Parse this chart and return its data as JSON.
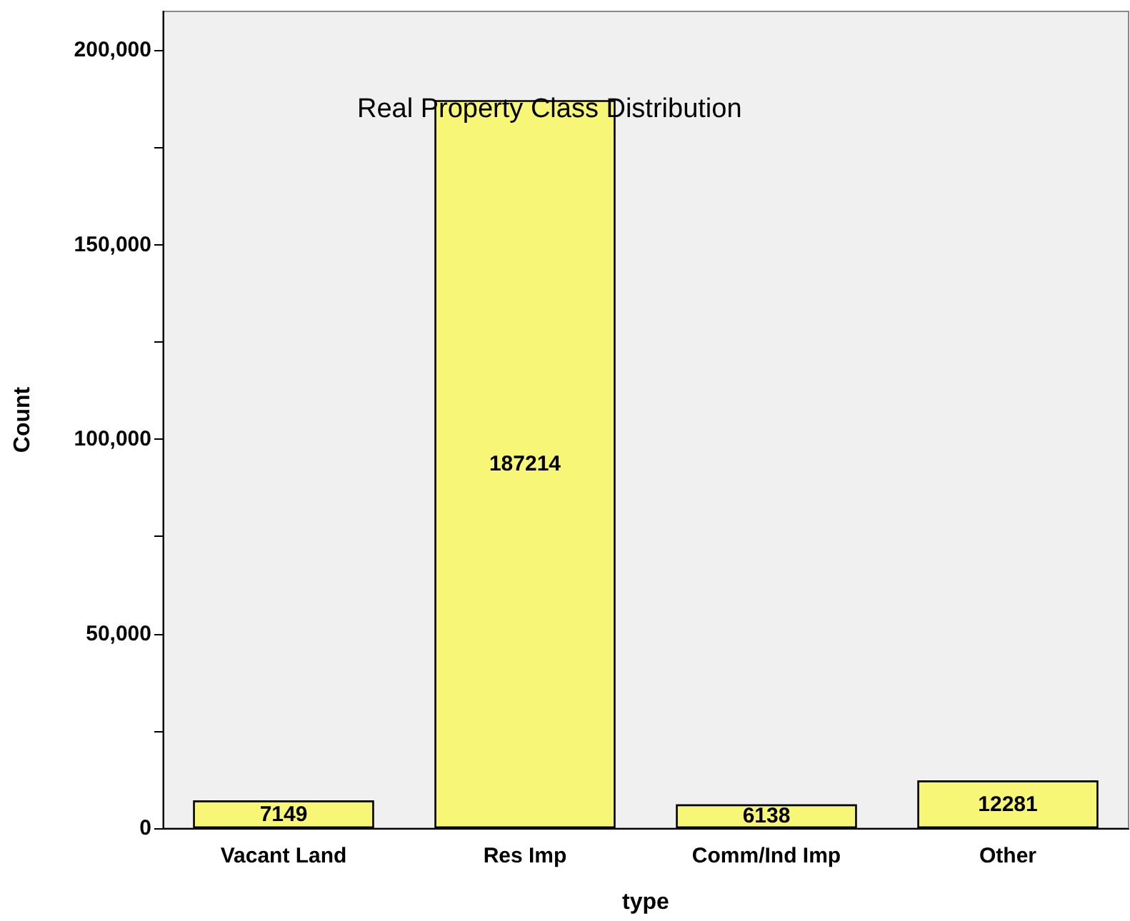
{
  "chart_data": {
    "type": "bar",
    "title": "Real Property Class Distribution",
    "xlabel": "type",
    "ylabel": "Count",
    "categories": [
      "Vacant Land",
      "Res Imp",
      "Comm/Ind Imp",
      "Other"
    ],
    "values": [
      7149,
      187214,
      6138,
      12281
    ],
    "color": "#f8f677",
    "ylim": [
      0,
      210000
    ],
    "yticks": [
      {
        "value": 0,
        "label": "0"
      },
      {
        "value": 25000,
        "label": null
      },
      {
        "value": 50000,
        "label": "50,000"
      },
      {
        "value": 75000,
        "label": null
      },
      {
        "value": 100000,
        "label": "100,000"
      },
      {
        "value": 125000,
        "label": null
      },
      {
        "value": 150000,
        "label": "150,000"
      },
      {
        "value": 175000,
        "label": null
      },
      {
        "value": 200000,
        "label": "200,000"
      }
    ],
    "data_labels": true,
    "grid": false
  }
}
